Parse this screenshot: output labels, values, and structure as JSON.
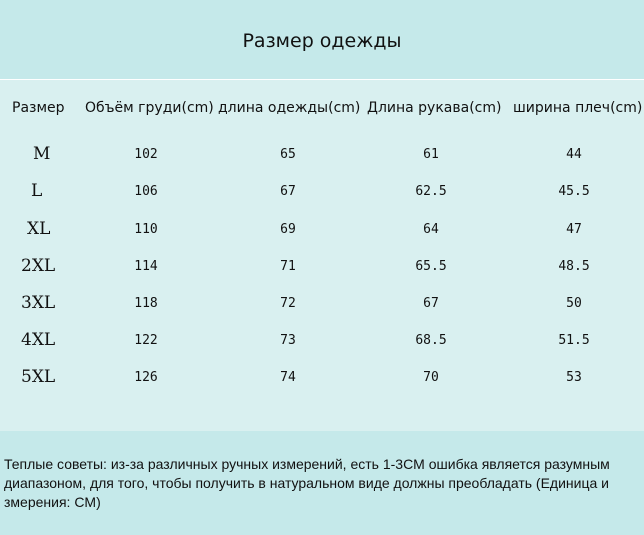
{
  "title": "Размер одежды",
  "columns": {
    "size": "Размер",
    "chest": "Объём груди(cm)",
    "length": "длина одежды(cm)",
    "sleeve": "Длина рукава(cm)",
    "shoulder": "ширина плеч(cm)"
  },
  "rows": [
    {
      "size": "M",
      "chest": "102",
      "length": "65",
      "sleeve": "61",
      "shoulder": "44"
    },
    {
      "size": "L",
      "chest": "106",
      "length": "67",
      "sleeve": "62.5",
      "shoulder": "45.5"
    },
    {
      "size": "XL",
      "chest": "110",
      "length": "69",
      "sleeve": "64",
      "shoulder": "47"
    },
    {
      "size": "2XL",
      "chest": "114",
      "length": "71",
      "sleeve": "65.5",
      "shoulder": "48.5"
    },
    {
      "size": "3XL",
      "chest": "118",
      "length": "72",
      "sleeve": "67",
      "shoulder": "50"
    },
    {
      "size": "4XL",
      "chest": "122",
      "length": "73",
      "sleeve": "68.5",
      "shoulder": "51.5"
    },
    {
      "size": "5XL",
      "chest": "126",
      "length": "74",
      "sleeve": "70",
      "shoulder": "53"
    }
  ],
  "tips": "Теплые советы: из-за различных ручных измерений, есть 1-3CM ошибка является разумным\nдиапазоном, для того, чтобы получить в натуральном виде должны преобладать (Единица и\nзмерения: CM)",
  "colors": {
    "header_bg": "#c5e9ea",
    "table_bg": "#d9f0f0"
  }
}
